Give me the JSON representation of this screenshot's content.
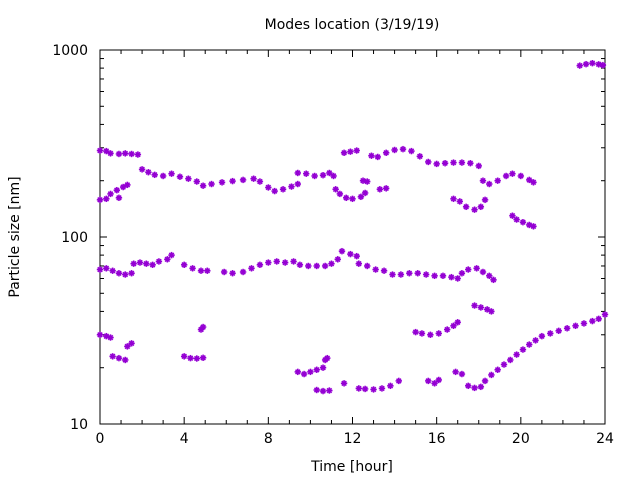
{
  "chart_data": {
    "type": "scatter",
    "title": "Modes location (3/19/19)",
    "xlabel": "Time [hour]",
    "ylabel": "Particle size [nm]",
    "xlim": [
      0,
      24
    ],
    "ylim": [
      10,
      1000
    ],
    "y_scale": "log",
    "x_ticks": [
      "0",
      "4",
      "8",
      "12",
      "16",
      "20",
      "24"
    ],
    "y_ticks": [
      "10",
      "100",
      "1000"
    ],
    "grid": false,
    "legend": "none",
    "marker_color": "#9400d3",
    "series": [
      {
        "points": [
          [
            0.0,
            290
          ],
          [
            0.3,
            288
          ],
          [
            0.5,
            280
          ],
          [
            0.9,
            278
          ],
          [
            1.2,
            280
          ],
          [
            1.5,
            278
          ],
          [
            1.8,
            276
          ],
          [
            2.0,
            230
          ],
          [
            2.3,
            222
          ],
          [
            2.6,
            215
          ],
          [
            3.0,
            212
          ],
          [
            3.4,
            218
          ],
          [
            3.8,
            210
          ],
          [
            4.2,
            205
          ],
          [
            4.6,
            198
          ],
          [
            4.9,
            188
          ],
          [
            5.3,
            192
          ],
          [
            5.8,
            196
          ],
          [
            6.3,
            199
          ],
          [
            6.8,
            202
          ],
          [
            7.3,
            205
          ],
          [
            7.6,
            198
          ],
          [
            8.0,
            184
          ],
          [
            8.3,
            176
          ],
          [
            8.7,
            180
          ],
          [
            9.1,
            186
          ],
          [
            9.4,
            192
          ],
          [
            9.4,
            220
          ],
          [
            9.8,
            218
          ],
          [
            10.2,
            212
          ],
          [
            10.6,
            214
          ],
          [
            10.9,
            220
          ],
          [
            11.1,
            212
          ],
          [
            11.2,
            180
          ],
          [
            11.4,
            170
          ],
          [
            11.7,
            162
          ],
          [
            12.0,
            160
          ],
          [
            12.4,
            164
          ],
          [
            12.6,
            172
          ],
          [
            11.6,
            282
          ],
          [
            11.9,
            286
          ],
          [
            12.2,
            290
          ],
          [
            12.5,
            200
          ],
          [
            12.7,
            198
          ],
          [
            13.3,
            180
          ],
          [
            13.6,
            182
          ],
          [
            12.9,
            272
          ],
          [
            13.2,
            268
          ],
          [
            13.6,
            282
          ],
          [
            14.0,
            292
          ],
          [
            14.4,
            295
          ],
          [
            14.8,
            288
          ],
          [
            15.2,
            270
          ],
          [
            15.6,
            252
          ],
          [
            16.0,
            246
          ],
          [
            16.4,
            248
          ],
          [
            16.8,
            250
          ],
          [
            17.2,
            250
          ],
          [
            17.6,
            248
          ],
          [
            18.0,
            240
          ],
          [
            18.2,
            200
          ],
          [
            18.5,
            192
          ],
          [
            18.9,
            200
          ],
          [
            19.3,
            212
          ],
          [
            19.6,
            218
          ],
          [
            20.0,
            212
          ],
          [
            20.4,
            202
          ],
          [
            20.6,
            196
          ],
          [
            16.8,
            160
          ],
          [
            17.1,
            155
          ],
          [
            17.4,
            145
          ],
          [
            17.8,
            140
          ],
          [
            18.1,
            145
          ],
          [
            18.3,
            158
          ],
          [
            19.6,
            130
          ],
          [
            19.8,
            124
          ],
          [
            20.1,
            120
          ],
          [
            20.4,
            116
          ],
          [
            20.6,
            114
          ],
          [
            0.0,
            158
          ],
          [
            0.3,
            160
          ],
          [
            0.5,
            170
          ],
          [
            0.8,
            178
          ],
          [
            1.1,
            185
          ],
          [
            1.3,
            190
          ],
          [
            0.9,
            162
          ],
          [
            22.8,
            825
          ],
          [
            23.1,
            840
          ],
          [
            23.4,
            850
          ],
          [
            23.7,
            838
          ],
          [
            23.9,
            830
          ]
        ]
      },
      {
        "points": [
          [
            0.0,
            67
          ],
          [
            0.3,
            68
          ],
          [
            0.6,
            66
          ],
          [
            0.9,
            64
          ],
          [
            1.2,
            63
          ],
          [
            1.5,
            64
          ],
          [
            1.6,
            72
          ],
          [
            1.9,
            73
          ],
          [
            2.2,
            72
          ],
          [
            2.5,
            71
          ],
          [
            2.8,
            74
          ],
          [
            3.2,
            76
          ],
          [
            3.4,
            80
          ],
          [
            4.0,
            71
          ],
          [
            4.4,
            68
          ],
          [
            4.8,
            66
          ],
          [
            5.1,
            66
          ],
          [
            5.9,
            65
          ],
          [
            6.3,
            64
          ],
          [
            6.8,
            65
          ],
          [
            7.2,
            68
          ],
          [
            7.6,
            71
          ],
          [
            8.0,
            73
          ],
          [
            8.4,
            74
          ],
          [
            8.8,
            73
          ],
          [
            9.2,
            74
          ],
          [
            9.5,
            71
          ],
          [
            9.9,
            70
          ],
          [
            10.3,
            70
          ],
          [
            10.7,
            70
          ],
          [
            11.0,
            72
          ],
          [
            11.3,
            76
          ],
          [
            11.5,
            84
          ],
          [
            11.9,
            81
          ],
          [
            12.2,
            79
          ],
          [
            12.3,
            72
          ],
          [
            12.7,
            70
          ],
          [
            13.1,
            67
          ],
          [
            13.5,
            66
          ],
          [
            13.9,
            63
          ],
          [
            14.3,
            63
          ],
          [
            14.7,
            64
          ],
          [
            15.1,
            64
          ],
          [
            15.5,
            63
          ],
          [
            15.9,
            62
          ],
          [
            16.3,
            62
          ],
          [
            16.7,
            61
          ],
          [
            17.0,
            60
          ],
          [
            17.2,
            64
          ],
          [
            17.5,
            67
          ],
          [
            17.9,
            68
          ],
          [
            18.2,
            65
          ],
          [
            18.5,
            62
          ],
          [
            18.7,
            59
          ],
          [
            4.8,
            32
          ],
          [
            4.9,
            33
          ],
          [
            17.8,
            43
          ],
          [
            18.1,
            42
          ],
          [
            18.4,
            41
          ],
          [
            18.6,
            40
          ]
        ]
      },
      {
        "points": [
          [
            0.0,
            30
          ],
          [
            0.3,
            29.5
          ],
          [
            0.5,
            29
          ],
          [
            0.6,
            23
          ],
          [
            0.9,
            22.5
          ],
          [
            1.2,
            22
          ],
          [
            1.3,
            26
          ],
          [
            1.5,
            27
          ],
          [
            4.0,
            23
          ],
          [
            4.3,
            22.5
          ],
          [
            4.6,
            22.4
          ],
          [
            4.9,
            22.6
          ],
          [
            9.4,
            19
          ],
          [
            9.7,
            18.5
          ],
          [
            10.0,
            19
          ],
          [
            10.3,
            19.5
          ],
          [
            10.6,
            20
          ],
          [
            10.7,
            22
          ],
          [
            10.8,
            22.5
          ],
          [
            10.3,
            15.2
          ],
          [
            10.6,
            15
          ],
          [
            10.9,
            15.1
          ],
          [
            11.6,
            16.5
          ],
          [
            12.3,
            15.5
          ],
          [
            12.6,
            15.4
          ],
          [
            13.0,
            15.3
          ],
          [
            13.4,
            15.5
          ],
          [
            13.8,
            16
          ],
          [
            14.2,
            17
          ],
          [
            15.0,
            31
          ],
          [
            15.3,
            30.5
          ],
          [
            15.7,
            30
          ],
          [
            16.1,
            30.5
          ],
          [
            16.5,
            32
          ],
          [
            16.8,
            33.5
          ],
          [
            17.0,
            35
          ],
          [
            15.6,
            17
          ],
          [
            15.9,
            16.5
          ],
          [
            16.1,
            17.2
          ],
          [
            16.9,
            19
          ],
          [
            17.2,
            18.5
          ],
          [
            17.5,
            16
          ],
          [
            17.8,
            15.6
          ],
          [
            18.1,
            15.8
          ],
          [
            18.3,
            17
          ],
          [
            18.6,
            18.3
          ],
          [
            18.9,
            19.5
          ],
          [
            19.2,
            20.8
          ],
          [
            19.5,
            22
          ],
          [
            19.8,
            23.5
          ],
          [
            20.1,
            25
          ],
          [
            20.4,
            26.6
          ],
          [
            20.7,
            28
          ],
          [
            21.0,
            29.5
          ],
          [
            21.4,
            30.5
          ],
          [
            21.8,
            31.5
          ],
          [
            22.2,
            32.5
          ],
          [
            22.6,
            33.5
          ],
          [
            23.0,
            34.5
          ],
          [
            23.4,
            35.5
          ],
          [
            23.7,
            36.5
          ],
          [
            24.0,
            38.5
          ]
        ]
      }
    ]
  }
}
